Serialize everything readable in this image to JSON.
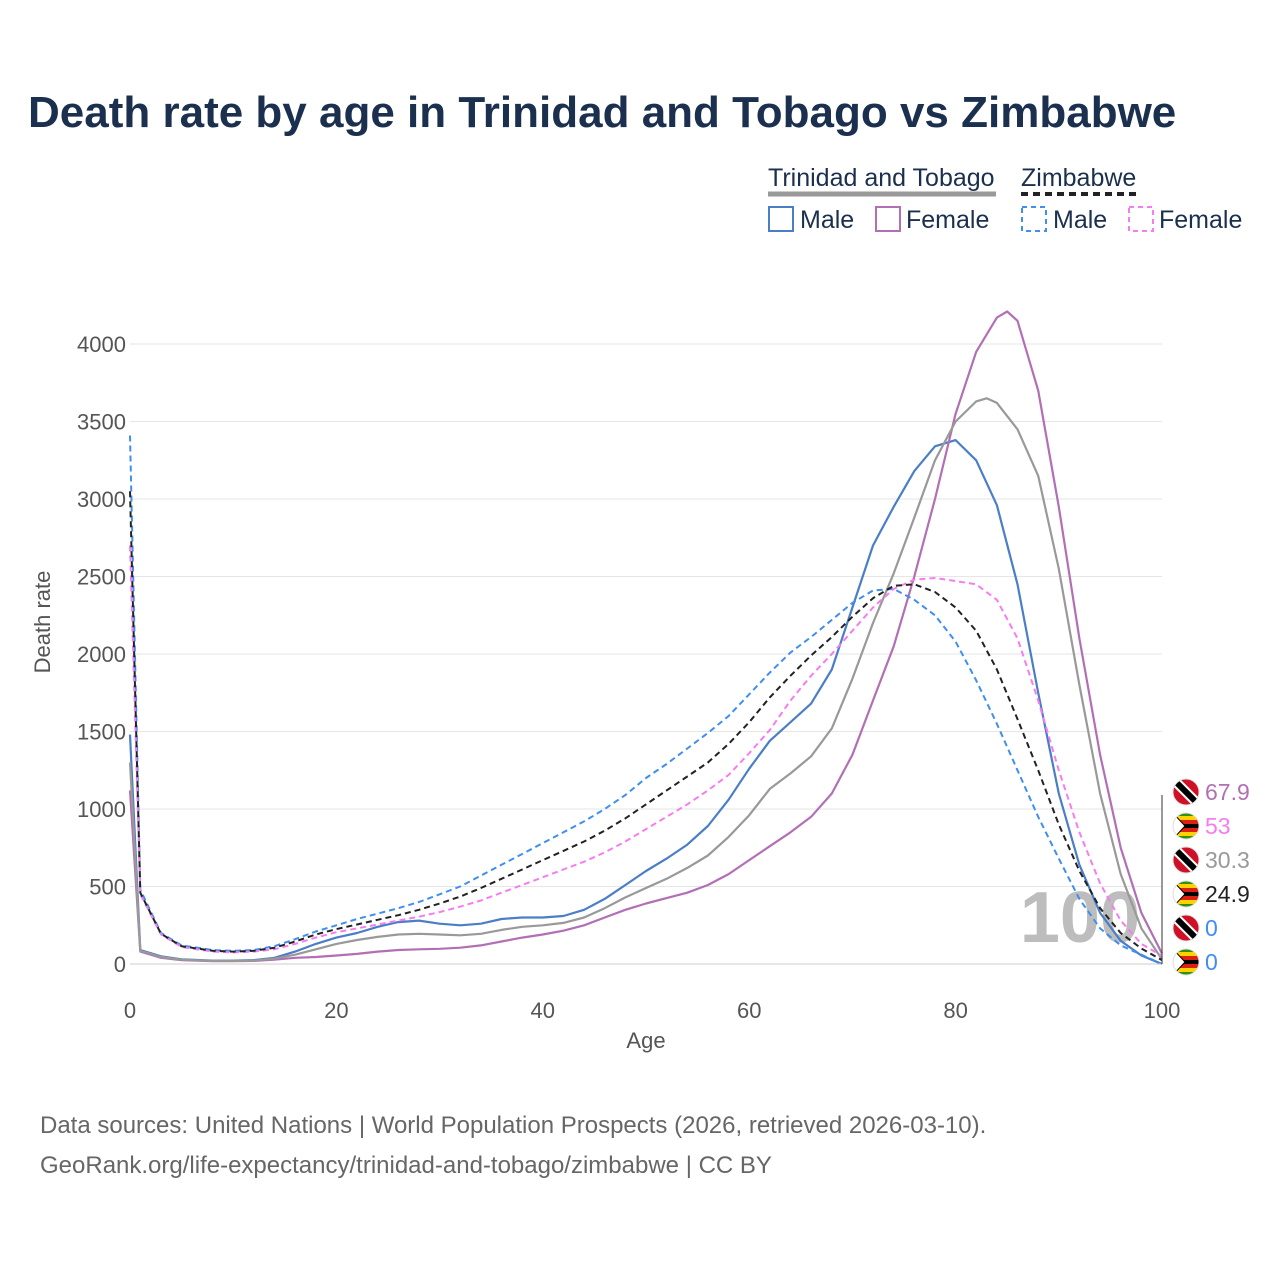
{
  "title": "Death rate by age in Trinidad and Tobago vs Zimbabwe",
  "legend": {
    "groups": [
      {
        "name": "Trinidad and Tobago",
        "line_style": "solid",
        "color": "#999999",
        "items": [
          {
            "label": "Male",
            "color": "#4a7ec6"
          },
          {
            "label": "Female",
            "color": "#b26fb5"
          }
        ]
      },
      {
        "name": "Zimbabwe",
        "line_style": "dashed",
        "color": "#222222",
        "items": [
          {
            "label": "Male",
            "color": "#3f8ef0"
          },
          {
            "label": "Female",
            "color": "#f67cf0"
          }
        ]
      }
    ]
  },
  "chart_data": {
    "type": "line",
    "xlabel": "Age",
    "ylabel": "Death rate",
    "xlim": [
      0,
      100
    ],
    "ylim": [
      0,
      4200
    ],
    "xticks": [
      "0",
      "20",
      "40",
      "60",
      "80",
      "100"
    ],
    "yticks": [
      "0",
      "500",
      "1000",
      "1500",
      "2000",
      "2500",
      "3000",
      "3500",
      "4000"
    ],
    "watermark": "100",
    "series": [
      {
        "name": "Trinidad and Tobago Male",
        "country": "Trinidad and Tobago",
        "sex": "Male",
        "dashed": false,
        "color": "#4a7ec6",
        "x": [
          0,
          1,
          3,
          5,
          8,
          10,
          12,
          14,
          16,
          18,
          20,
          22,
          24,
          26,
          28,
          30,
          32,
          34,
          36,
          38,
          40,
          42,
          44,
          46,
          48,
          50,
          52,
          54,
          56,
          58,
          60,
          62,
          64,
          66,
          68,
          70,
          72,
          74,
          76,
          78,
          80,
          82,
          84,
          86,
          88,
          90,
          92,
          94,
          96,
          98,
          100
        ],
        "values": [
          1480,
          90,
          50,
          30,
          22,
          22,
          25,
          40,
          80,
          130,
          170,
          200,
          240,
          270,
          280,
          260,
          250,
          260,
          290,
          300,
          300,
          310,
          350,
          420,
          510,
          600,
          680,
          770,
          890,
          1060,
          1260,
          1440,
          1560,
          1680,
          1900,
          2300,
          2700,
          2950,
          3180,
          3340,
          3380,
          3250,
          2960,
          2450,
          1750,
          1100,
          640,
          330,
          150,
          55,
          0
        ],
        "end_label": "0",
        "end_color": "#3f8ef0",
        "flag": "trinidad"
      },
      {
        "name": "Trinidad and Tobago Female",
        "country": "Trinidad and Tobago",
        "sex": "Female",
        "dashed": false,
        "color": "#b26fb5",
        "x": [
          0,
          1,
          3,
          5,
          8,
          10,
          12,
          14,
          16,
          18,
          20,
          22,
          24,
          26,
          28,
          30,
          32,
          34,
          36,
          38,
          40,
          42,
          44,
          46,
          48,
          50,
          52,
          54,
          56,
          58,
          60,
          62,
          64,
          66,
          68,
          70,
          72,
          74,
          76,
          78,
          80,
          82,
          84,
          85,
          86,
          88,
          90,
          92,
          94,
          96,
          98,
          100
        ],
        "values": [
          1120,
          80,
          40,
          25,
          18,
          18,
          20,
          28,
          40,
          45,
          55,
          65,
          80,
          90,
          95,
          98,
          105,
          120,
          145,
          170,
          190,
          215,
          250,
          300,
          350,
          390,
          425,
          460,
          510,
          580,
          670,
          760,
          850,
          950,
          1100,
          1350,
          1700,
          2050,
          2500,
          3000,
          3550,
          3950,
          4170,
          4210,
          4150,
          3700,
          2950,
          2100,
          1350,
          750,
          330,
          68
        ],
        "end_label": "67.9",
        "end_color": "#b26fb5",
        "flag": "trinidad"
      },
      {
        "name": "Trinidad and Tobago Both",
        "country": "Trinidad and Tobago",
        "sex": "Both",
        "dashed": false,
        "color": "#999999",
        "x": [
          0,
          1,
          3,
          5,
          8,
          10,
          12,
          14,
          16,
          18,
          20,
          22,
          24,
          26,
          28,
          30,
          32,
          34,
          36,
          38,
          40,
          42,
          44,
          46,
          48,
          50,
          52,
          54,
          56,
          58,
          60,
          62,
          64,
          66,
          68,
          70,
          72,
          74,
          76,
          78,
          80,
          82,
          83,
          84,
          86,
          88,
          90,
          92,
          94,
          96,
          98,
          100
        ],
        "values": [
          1300,
          85,
          45,
          28,
          20,
          20,
          22,
          35,
          60,
          95,
          130,
          155,
          175,
          190,
          195,
          190,
          185,
          195,
          220,
          240,
          250,
          265,
          300,
          360,
          430,
          490,
          550,
          620,
          700,
          820,
          960,
          1130,
          1230,
          1340,
          1520,
          1840,
          2200,
          2520,
          2880,
          3250,
          3500,
          3630,
          3650,
          3620,
          3450,
          3150,
          2550,
          1800,
          1100,
          580,
          230,
          30
        ],
        "end_label": "30.3",
        "end_color": "#999999",
        "flag": "trinidad"
      },
      {
        "name": "Zimbabwe Male",
        "country": "Zimbabwe",
        "sex": "Male",
        "dashed": true,
        "color": "#3f8ef0",
        "x": [
          0,
          1,
          3,
          5,
          8,
          10,
          12,
          14,
          16,
          18,
          20,
          22,
          24,
          26,
          28,
          30,
          32,
          34,
          36,
          38,
          40,
          42,
          44,
          46,
          48,
          50,
          52,
          54,
          56,
          58,
          60,
          62,
          64,
          66,
          68,
          70,
          72,
          74,
          76,
          78,
          80,
          82,
          84,
          86,
          88,
          90,
          92,
          94,
          96,
          98,
          100
        ],
        "values": [
          3410,
          480,
          200,
          120,
          90,
          85,
          90,
          115,
          160,
          210,
          250,
          290,
          325,
          360,
          400,
          450,
          500,
          570,
          640,
          710,
          780,
          850,
          920,
          1000,
          1090,
          1200,
          1290,
          1390,
          1490,
          1600,
          1740,
          1880,
          2010,
          2110,
          2220,
          2330,
          2410,
          2420,
          2350,
          2250,
          2080,
          1830,
          1550,
          1250,
          950,
          680,
          420,
          230,
          120,
          60,
          0
        ],
        "end_label": "0",
        "end_color": "#3f8ef0",
        "flag": "zimbabwe"
      },
      {
        "name": "Zimbabwe Female",
        "country": "Zimbabwe",
        "sex": "Female",
        "dashed": true,
        "color": "#f67cf0",
        "x": [
          0,
          1,
          3,
          5,
          8,
          10,
          12,
          14,
          16,
          18,
          20,
          22,
          24,
          26,
          28,
          30,
          32,
          34,
          36,
          38,
          40,
          42,
          44,
          46,
          48,
          50,
          52,
          54,
          56,
          58,
          60,
          62,
          64,
          66,
          68,
          70,
          72,
          74,
          76,
          78,
          80,
          82,
          84,
          86,
          88,
          90,
          92,
          94,
          96,
          98,
          100
        ],
        "values": [
          2700,
          450,
          190,
          110,
          80,
          75,
          80,
          95,
          130,
          170,
          205,
          230,
          255,
          280,
          305,
          335,
          370,
          410,
          460,
          510,
          560,
          610,
          660,
          720,
          790,
          870,
          950,
          1030,
          1120,
          1220,
          1360,
          1510,
          1700,
          1860,
          2000,
          2150,
          2300,
          2420,
          2480,
          2490,
          2470,
          2450,
          2350,
          2100,
          1700,
          1250,
          850,
          520,
          280,
          130,
          53
        ],
        "end_label": "53",
        "end_color": "#f67cf0",
        "flag": "zimbabwe"
      },
      {
        "name": "Zimbabwe Both",
        "country": "Zimbabwe",
        "sex": "Both",
        "dashed": true,
        "color": "#222222",
        "x": [
          0,
          1,
          3,
          5,
          8,
          10,
          12,
          14,
          16,
          18,
          20,
          22,
          24,
          26,
          28,
          30,
          32,
          34,
          36,
          38,
          40,
          42,
          44,
          46,
          48,
          50,
          52,
          54,
          56,
          58,
          60,
          62,
          64,
          66,
          68,
          70,
          72,
          74,
          76,
          78,
          80,
          82,
          84,
          86,
          88,
          90,
          92,
          94,
          96,
          98,
          100
        ],
        "values": [
          3050,
          460,
          195,
          115,
          85,
          80,
          85,
          105,
          145,
          190,
          225,
          255,
          285,
          315,
          350,
          390,
          435,
          490,
          550,
          610,
          670,
          730,
          790,
          860,
          940,
          1030,
          1120,
          1210,
          1300,
          1420,
          1560,
          1720,
          1860,
          1990,
          2110,
          2240,
          2360,
          2440,
          2450,
          2400,
          2300,
          2150,
          1900,
          1580,
          1250,
          900,
          600,
          360,
          200,
          100,
          24.9
        ],
        "end_label": "24.9",
        "end_color": "#222222",
        "flag": "zimbabwe"
      }
    ],
    "end_labels_order": [
      "67.9",
      "53",
      "30.3",
      "24.9",
      "0",
      "0"
    ]
  },
  "footer": {
    "line1": "Data sources: United Nations | World Population Prospects (2026, retrieved 2026-03-10).",
    "line2": "GeoRank.org/life-expectancy/trinidad-and-tobago/zimbabwe | CC BY"
  }
}
